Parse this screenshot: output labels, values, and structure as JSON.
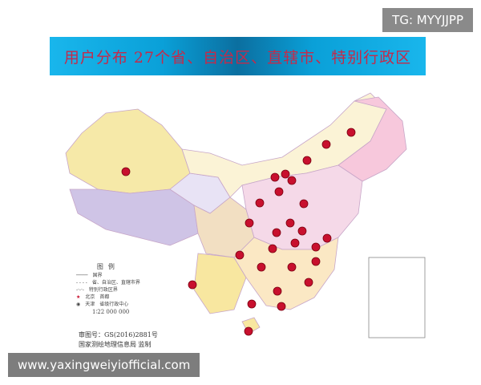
{
  "banner": {
    "title": "用户分布 27个省、自治区、直辖市、特别行政区",
    "background": "#0aa0d8",
    "text_color": "#c42a4a"
  },
  "watermarks": {
    "top_right": "TG: MYYJJPP",
    "bottom_left": "www.yaxingweiyiofficial.com"
  },
  "legend": {
    "title": "图例",
    "items": [
      "国界",
      "省、自治区、直辖市界",
      "特别行政区界",
      "首都",
      "省级行政中心"
    ],
    "capital_sample": "北京",
    "center_sample": "天津",
    "scale": "1∶22 000 000"
  },
  "credit": {
    "approval": "审图号：GS(2016)2881号",
    "issuer": "国家测绘地理信息局 监制"
  },
  "marker_color": "#c8102e"
}
